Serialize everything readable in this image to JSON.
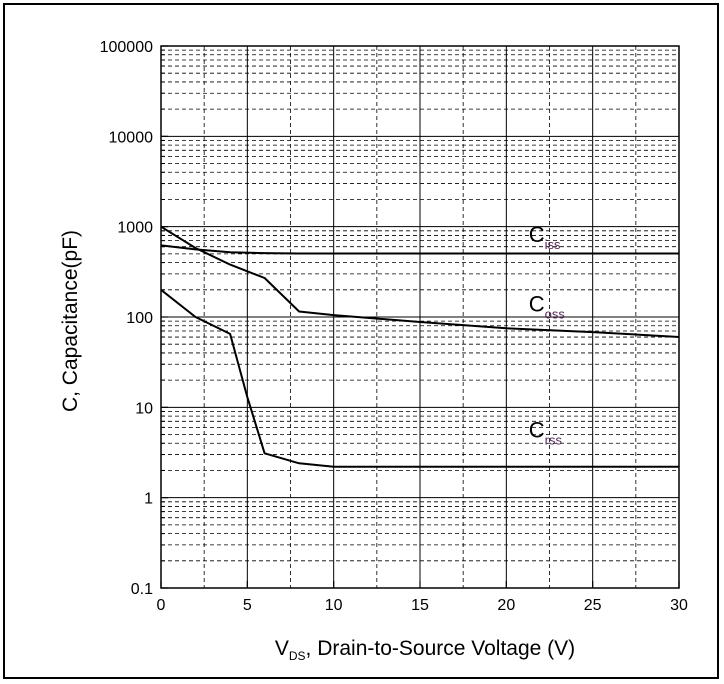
{
  "chart_data": {
    "type": "line",
    "xlabel": {
      "main": "V",
      "sub": "DS",
      "rest": ", Drain-to-Source Voltage (V)"
    },
    "ylabel": "C, Capacitance(pF)",
    "x_ticks": [
      "0",
      "5",
      "10",
      "15",
      "20",
      "25",
      "30"
    ],
    "y_ticks": [
      "0.1",
      "1",
      "10",
      "100",
      "1000",
      "10000",
      "100000"
    ],
    "xlim": [
      0,
      30
    ],
    "ylim": [
      0.1,
      100000
    ],
    "y_scale": "log",
    "grid": true,
    "series": [
      {
        "name": {
          "main": "C",
          "sub": "iss"
        },
        "x": [
          0,
          2,
          4,
          6,
          8,
          10,
          15,
          20,
          25,
          30
        ],
        "y": [
          620,
          560,
          520,
          510,
          505,
          505,
          505,
          505,
          505,
          505
        ]
      },
      {
        "name": {
          "main": "C",
          "sub": "oss"
        },
        "x": [
          0,
          2,
          4,
          6,
          8,
          10,
          15,
          20,
          25,
          30
        ],
        "y": [
          1000,
          580,
          380,
          270,
          115,
          105,
          88,
          75,
          68,
          60
        ]
      },
      {
        "name": {
          "main": "C",
          "sub": "rss"
        },
        "x": [
          0,
          2,
          4,
          5,
          6,
          8,
          10,
          15,
          20,
          25,
          30
        ],
        "y": [
          200,
          100,
          65,
          13,
          3.1,
          2.4,
          2.2,
          2.2,
          2.2,
          2.2,
          2.2
        ]
      }
    ]
  },
  "colors": {
    "line": "#000000",
    "grid_major": "#000000",
    "grid_minor": "#000000",
    "label_sub": "#5a2a5a"
  }
}
